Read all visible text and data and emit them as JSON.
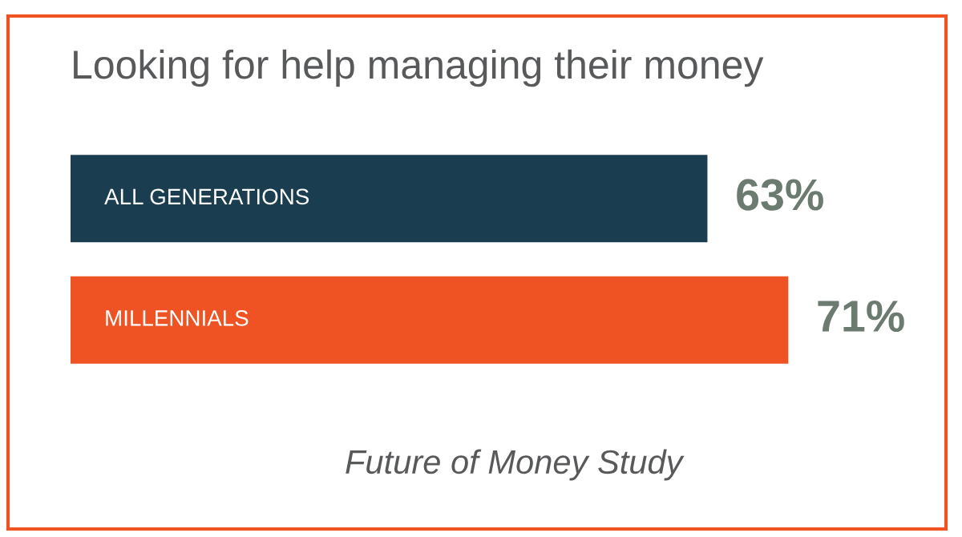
{
  "chart_data": {
    "type": "bar",
    "orientation": "horizontal",
    "title": "Looking for help managing their money",
    "categories": [
      "ALL GENERATIONS",
      "MILLENNIALS"
    ],
    "values": [
      63,
      71
    ],
    "colors": [
      "#1a3d50",
      "#f05323"
    ],
    "data_labels": true,
    "value_labels": [
      "63%",
      "71%"
    ],
    "annotations": [
      "Future of Money Study"
    ]
  }
}
